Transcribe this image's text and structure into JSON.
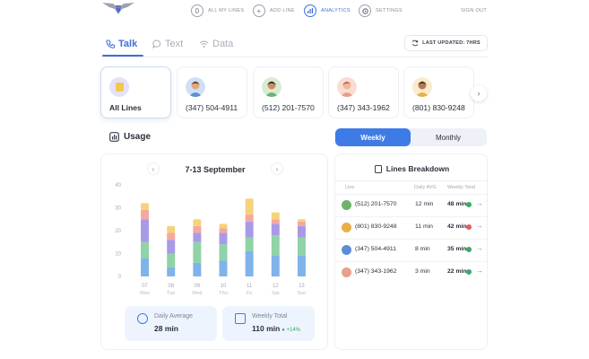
{
  "nav": {
    "items": [
      {
        "label": "ALL MY LINES",
        "icon": "0"
      },
      {
        "label": "ADD LINE",
        "icon": "+"
      },
      {
        "label": "ANALYTICS",
        "icon": "chart-icon"
      },
      {
        "label": "SETTINGS",
        "icon": "gear-icon"
      }
    ],
    "signout": "SIGN OUT"
  },
  "tabs": [
    {
      "label": "Talk",
      "icon": "phone-icon"
    },
    {
      "label": "Text",
      "icon": "chat-icon"
    },
    {
      "label": "Data",
      "icon": "wifi-icon"
    }
  ],
  "last_updated": "LAST UPDATED: 7HRS",
  "lines": [
    {
      "label": "All Lines"
    },
    {
      "label": "(347) 504-4911",
      "avatar_color": "#5b8ed6"
    },
    {
      "label": "(512) 201-7570",
      "avatar_color": "#6db36a"
    },
    {
      "label": "(347) 343-1962",
      "avatar_color": "#e8a08a"
    },
    {
      "label": "(801) 830-9248",
      "avatar_color": "#e8b04b"
    }
  ],
  "usage": {
    "title": "Usage",
    "toggle": {
      "weekly": "Weekly",
      "monthly": "Monthly"
    },
    "period": "7-13 September"
  },
  "chart_data": {
    "type": "bar",
    "stacked": true,
    "categories": [
      "07",
      "08",
      "09",
      "10",
      "11",
      "12",
      "13"
    ],
    "day_labels": [
      "Mon",
      "Tue",
      "Wed",
      "Thu",
      "Fri",
      "Sat",
      "Sun"
    ],
    "ylim": [
      0,
      40
    ],
    "yticks": [
      0,
      10,
      20,
      30,
      40
    ],
    "series": [
      {
        "color": "#7fb3ea",
        "values": [
          8,
          4,
          6,
          7,
          11,
          9,
          9
        ]
      },
      {
        "color": "#8fd3a6",
        "values": [
          7,
          6,
          9,
          7,
          6,
          9,
          8
        ]
      },
      {
        "color": "#a99ae8",
        "values": [
          10,
          6,
          4,
          5,
          7,
          5,
          5
        ]
      },
      {
        "color": "#f4a8a0",
        "values": [
          4,
          3,
          3,
          2,
          3,
          2,
          2
        ]
      },
      {
        "color": "#f6d27a",
        "values": [
          3,
          3,
          3,
          2,
          7,
          3,
          1
        ]
      }
    ]
  },
  "stats": {
    "daily": {
      "label": "Daily Average",
      "value": "28 min"
    },
    "weekly": {
      "label": "Weekly Total",
      "value": "110 min",
      "delta": "+14%"
    }
  },
  "breakdown": {
    "title": "Lines Breakdown",
    "headers": {
      "line": "Line",
      "avg": "Daily AVG",
      "total": "Weekly Total"
    },
    "rows": [
      {
        "line": "(512) 201-7570",
        "avg": "12 min",
        "total": "48 min",
        "status_color": "#3aa867",
        "avatar_color": "#6db36a"
      },
      {
        "line": "(801) 830-9248",
        "avg": "11 min",
        "total": "42 min",
        "status_color": "#e35d5d",
        "avatar_color": "#e8b04b"
      },
      {
        "line": "(347) 504-4911",
        "avg": "8 min",
        "total": "35 min",
        "status_color": "#3aa867",
        "avatar_color": "#5b8ed6"
      },
      {
        "line": "(347) 343-1962",
        "avg": "3 min",
        "total": "22 min",
        "status_color": "#3aa867",
        "avatar_color": "#e8a08a"
      }
    ]
  }
}
